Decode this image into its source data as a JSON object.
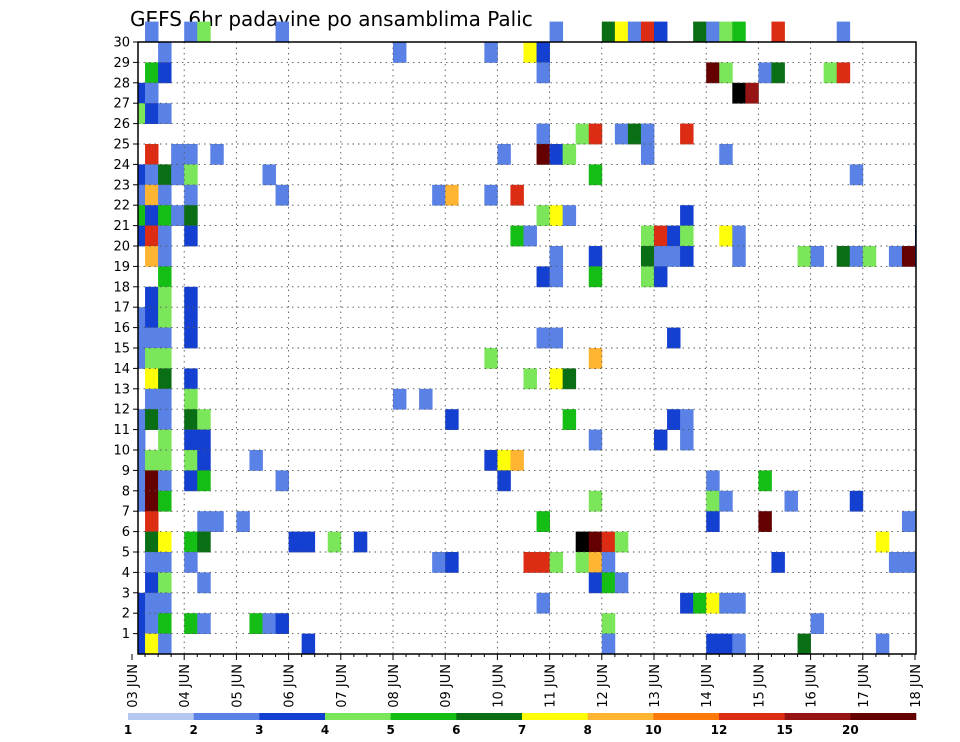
{
  "chart_data": {
    "type": "heatmap",
    "title": "GEFS 6hr padavine po ansamblima Palic",
    "xlabel": "",
    "ylabel": "",
    "x_tick_labels": [
      "03 JUN",
      "04 JUN",
      "05 JUN",
      "06 JUN",
      "07 JUN",
      "08 JUN",
      "09 JUN",
      "10 JUN",
      "11 JUN",
      "12 JUN",
      "13 JUN",
      "14 JUN",
      "15 JUN",
      "16 JUN",
      "17 JUN",
      "18 JUN"
    ],
    "y_tick_labels": [
      "1",
      "2",
      "3",
      "4",
      "5",
      "6",
      "7",
      "8",
      "9",
      "10",
      "11",
      "12",
      "13",
      "14",
      "15",
      "16",
      "17",
      "18",
      "19",
      "20",
      "21",
      "22",
      "23",
      "24",
      "25",
      "26",
      "27",
      "28",
      "29",
      "30"
    ],
    "ensemble_members": [
      1,
      30
    ],
    "time_steps_per_day": 4,
    "grid": true,
    "colorbar_levels": [
      1,
      2,
      3,
      4,
      5,
      6,
      7,
      8,
      10,
      12,
      15,
      20
    ],
    "colorbar_colors": [
      "#b4c8f0",
      "#5a82e6",
      "#1440d2",
      "#7be65a",
      "#14be14",
      "#0a6e14",
      "#ffff0a",
      "#ffb432",
      "#ff780a",
      "#dc2d14",
      "#961414",
      "#640000"
    ],
    "cells": [
      [
        1,
        30,
        1
      ],
      [
        4,
        30,
        1
      ],
      [
        5,
        30,
        3
      ],
      [
        11,
        30,
        1
      ],
      [
        20,
        29,
        1
      ],
      [
        27,
        29,
        1
      ],
      [
        30,
        29,
        6
      ],
      [
        31,
        29,
        2
      ],
      [
        32,
        30,
        1
      ],
      [
        36,
        30,
        5
      ],
      [
        37,
        30,
        6
      ],
      [
        38,
        30,
        1
      ],
      [
        39,
        30,
        9
      ],
      [
        40,
        30,
        2
      ],
      [
        43,
        30,
        5
      ],
      [
        44,
        30,
        1
      ],
      [
        45,
        30,
        3
      ],
      [
        46,
        30,
        4
      ],
      [
        49,
        30,
        9
      ],
      [
        54,
        30,
        1
      ],
      [
        2,
        29,
        1
      ],
      [
        1,
        28,
        4
      ],
      [
        2,
        28,
        2
      ],
      [
        31,
        28,
        1
      ],
      [
        44,
        28,
        11
      ],
      [
        45,
        28,
        3
      ],
      [
        48,
        28,
        1
      ],
      [
        49,
        28,
        5
      ],
      [
        53,
        28,
        3
      ],
      [
        54,
        28,
        9
      ],
      [
        0,
        27,
        2
      ],
      [
        1,
        27,
        1
      ],
      [
        46,
        27,
        12
      ],
      [
        47,
        27,
        10
      ],
      [
        -1,
        26,
        1
      ],
      [
        0,
        26,
        3
      ],
      [
        1,
        26,
        2
      ],
      [
        2,
        26,
        1
      ],
      [
        31,
        25,
        1
      ],
      [
        34,
        25,
        3
      ],
      [
        35,
        25,
        9
      ],
      [
        37,
        25,
        1
      ],
      [
        38,
        25,
        5
      ],
      [
        39,
        25,
        1
      ],
      [
        42,
        25,
        9
      ],
      [
        1,
        24,
        9
      ],
      [
        3,
        24,
        1
      ],
      [
        4,
        24,
        1
      ],
      [
        6,
        24,
        1
      ],
      [
        28,
        24,
        1
      ],
      [
        31,
        24,
        11
      ],
      [
        32,
        24,
        2
      ],
      [
        33,
        24,
        3
      ],
      [
        39,
        24,
        1
      ],
      [
        45,
        24,
        1
      ],
      [
        0,
        23,
        2
      ],
      [
        1,
        23,
        1
      ],
      [
        2,
        23,
        5
      ],
      [
        3,
        23,
        1
      ],
      [
        4,
        23,
        3
      ],
      [
        10,
        23,
        1
      ],
      [
        35,
        23,
        4
      ],
      [
        55,
        23,
        1
      ],
      [
        0,
        22,
        1
      ],
      [
        1,
        22,
        7
      ],
      [
        2,
        22,
        1
      ],
      [
        4,
        22,
        1
      ],
      [
        11,
        22,
        1
      ],
      [
        23,
        22,
        1
      ],
      [
        24,
        22,
        7
      ],
      [
        27,
        22,
        1
      ],
      [
        29,
        22,
        9
      ],
      [
        0,
        21,
        4
      ],
      [
        1,
        21,
        2
      ],
      [
        2,
        21,
        4
      ],
      [
        3,
        21,
        1
      ],
      [
        4,
        21,
        5
      ],
      [
        31,
        21,
        3
      ],
      [
        32,
        21,
        6
      ],
      [
        33,
        21,
        1
      ],
      [
        42,
        21,
        2
      ],
      [
        0,
        20,
        2
      ],
      [
        1,
        20,
        9
      ],
      [
        2,
        20,
        1
      ],
      [
        4,
        20,
        2
      ],
      [
        29,
        20,
        4
      ],
      [
        30,
        20,
        1
      ],
      [
        39,
        20,
        3
      ],
      [
        40,
        20,
        9
      ],
      [
        41,
        20,
        2
      ],
      [
        42,
        20,
        3
      ],
      [
        45,
        20,
        6
      ],
      [
        46,
        20,
        1
      ],
      [
        60,
        20,
        2
      ],
      [
        1,
        19,
        7
      ],
      [
        2,
        19,
        1
      ],
      [
        32,
        19,
        1
      ],
      [
        35,
        19,
        2
      ],
      [
        39,
        19,
        5
      ],
      [
        40,
        19,
        1
      ],
      [
        41,
        19,
        1
      ],
      [
        42,
        19,
        2
      ],
      [
        46,
        19,
        1
      ],
      [
        51,
        19,
        3
      ],
      [
        52,
        19,
        1
      ],
      [
        54,
        19,
        5
      ],
      [
        55,
        19,
        1
      ],
      [
        56,
        19,
        3
      ],
      [
        58,
        19,
        1
      ],
      [
        59,
        19,
        11
      ],
      [
        60,
        19,
        2
      ],
      [
        2,
        18,
        4
      ],
      [
        31,
        18,
        2
      ],
      [
        32,
        18,
        1
      ],
      [
        35,
        18,
        4
      ],
      [
        39,
        18,
        3
      ],
      [
        40,
        18,
        2
      ],
      [
        1,
        17,
        2
      ],
      [
        2,
        17,
        3
      ],
      [
        4,
        17,
        2
      ],
      [
        0,
        16,
        1
      ],
      [
        1,
        16,
        2
      ],
      [
        2,
        16,
        3
      ],
      [
        4,
        16,
        2
      ],
      [
        0,
        15,
        1
      ],
      [
        1,
        15,
        1
      ],
      [
        2,
        15,
        1
      ],
      [
        4,
        15,
        2
      ],
      [
        31,
        15,
        1
      ],
      [
        32,
        15,
        1
      ],
      [
        41,
        15,
        2
      ],
      [
        0,
        14,
        1
      ],
      [
        1,
        14,
        3
      ],
      [
        2,
        14,
        3
      ],
      [
        27,
        14,
        3
      ],
      [
        35,
        14,
        7
      ],
      [
        1,
        13,
        6
      ],
      [
        2,
        13,
        5
      ],
      [
        4,
        13,
        2
      ],
      [
        30,
        13,
        3
      ],
      [
        32,
        13,
        6
      ],
      [
        33,
        13,
        5
      ],
      [
        1,
        12,
        1
      ],
      [
        2,
        12,
        1
      ],
      [
        4,
        12,
        3
      ],
      [
        20,
        12,
        1
      ],
      [
        22,
        12,
        1
      ],
      [
        -1,
        11,
        1
      ],
      [
        0,
        11,
        1
      ],
      [
        1,
        11,
        5
      ],
      [
        2,
        11,
        1
      ],
      [
        4,
        11,
        5
      ],
      [
        5,
        11,
        3
      ],
      [
        24,
        11,
        2
      ],
      [
        33,
        11,
        4
      ],
      [
        41,
        11,
        2
      ],
      [
        42,
        11,
        1
      ],
      [
        -1,
        10,
        1
      ],
      [
        0,
        10,
        1
      ],
      [
        2,
        10,
        3
      ],
      [
        4,
        10,
        2
      ],
      [
        5,
        10,
        2
      ],
      [
        35,
        10,
        1
      ],
      [
        40,
        10,
        2
      ],
      [
        42,
        10,
        1
      ],
      [
        0,
        9,
        1
      ],
      [
        1,
        9,
        3
      ],
      [
        2,
        9,
        3
      ],
      [
        4,
        9,
        3
      ],
      [
        5,
        9,
        2
      ],
      [
        9,
        9,
        1
      ],
      [
        27,
        9,
        2
      ],
      [
        28,
        9,
        6
      ],
      [
        29,
        9,
        7
      ],
      [
        0,
        8,
        1
      ],
      [
        1,
        8,
        11
      ],
      [
        2,
        8,
        1
      ],
      [
        4,
        8,
        2
      ],
      [
        5,
        8,
        4
      ],
      [
        11,
        8,
        1
      ],
      [
        28,
        8,
        2
      ],
      [
        44,
        8,
        1
      ],
      [
        48,
        8,
        4
      ],
      [
        0,
        7,
        1
      ],
      [
        1,
        7,
        11
      ],
      [
        2,
        7,
        4
      ],
      [
        35,
        7,
        3
      ],
      [
        44,
        7,
        3
      ],
      [
        45,
        7,
        1
      ],
      [
        50,
        7,
        1
      ],
      [
        55,
        7,
        2
      ],
      [
        -1,
        6,
        3
      ],
      [
        1,
        6,
        9
      ],
      [
        5,
        6,
        1
      ],
      [
        6,
        6,
        1
      ],
      [
        8,
        6,
        1
      ],
      [
        31,
        6,
        4
      ],
      [
        44,
        6,
        2
      ],
      [
        48,
        6,
        11
      ],
      [
        59,
        6,
        1
      ],
      [
        1,
        5,
        5
      ],
      [
        2,
        5,
        6
      ],
      [
        4,
        5,
        4
      ],
      [
        5,
        5,
        5
      ],
      [
        12,
        5,
        2
      ],
      [
        13,
        5,
        2
      ],
      [
        15,
        5,
        3
      ],
      [
        17,
        5,
        2
      ],
      [
        34,
        5,
        12
      ],
      [
        35,
        5,
        11
      ],
      [
        36,
        5,
        9
      ],
      [
        37,
        5,
        3
      ],
      [
        57,
        5,
        6
      ],
      [
        1,
        4,
        1
      ],
      [
        2,
        4,
        1
      ],
      [
        4,
        4,
        1
      ],
      [
        23,
        4,
        1
      ],
      [
        24,
        4,
        2
      ],
      [
        30,
        4,
        9
      ],
      [
        31,
        4,
        9
      ],
      [
        32,
        4,
        3
      ],
      [
        34,
        4,
        3
      ],
      [
        35,
        4,
        7
      ],
      [
        36,
        4,
        1
      ],
      [
        49,
        4,
        2
      ],
      [
        58,
        4,
        1
      ],
      [
        59,
        4,
        1
      ],
      [
        1,
        3,
        2
      ],
      [
        2,
        3,
        3
      ],
      [
        5,
        3,
        1
      ],
      [
        35,
        3,
        2
      ],
      [
        36,
        3,
        4
      ],
      [
        37,
        3,
        1
      ],
      [
        0,
        2,
        2
      ],
      [
        1,
        2,
        1
      ],
      [
        2,
        2,
        1
      ],
      [
        31,
        2,
        1
      ],
      [
        42,
        2,
        2
      ],
      [
        43,
        2,
        4
      ],
      [
        44,
        2,
        6
      ],
      [
        45,
        2,
        1
      ],
      [
        46,
        2,
        1
      ],
      [
        0,
        1,
        2
      ],
      [
        1,
        1,
        1
      ],
      [
        2,
        1,
        4
      ],
      [
        4,
        1,
        4
      ],
      [
        5,
        1,
        1
      ],
      [
        9,
        1,
        4
      ],
      [
        10,
        1,
        1
      ],
      [
        11,
        1,
        2
      ],
      [
        36,
        1,
        3
      ],
      [
        52,
        1,
        1
      ],
      [
        0,
        0,
        2
      ],
      [
        1,
        0,
        6
      ],
      [
        2,
        0,
        1
      ],
      [
        13,
        0,
        2
      ],
      [
        36,
        0,
        1
      ],
      [
        44,
        0,
        2
      ],
      [
        45,
        0,
        2
      ],
      [
        46,
        0,
        1
      ],
      [
        51,
        0,
        5
      ],
      [
        57,
        0,
        1
      ]
    ]
  }
}
